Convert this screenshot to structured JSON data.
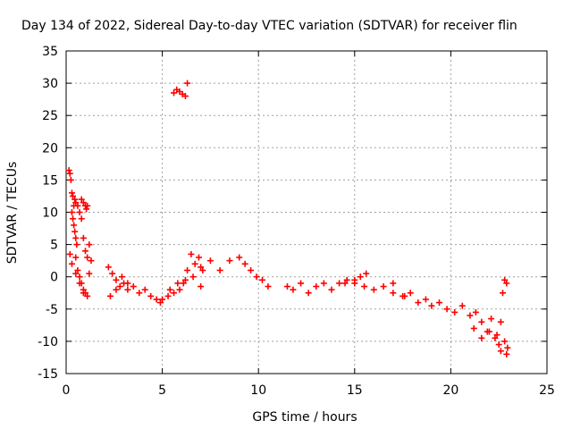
{
  "chart_data": {
    "type": "scatter",
    "title": "Day 134 of 2022, Sidereal Day-to-day VTEC variation (SDTVAR) for receiver flin",
    "xlabel": "GPS time / hours",
    "ylabel": "SDTVAR / TECUs",
    "xlim": [
      0,
      25
    ],
    "ylim": [
      -15,
      35
    ],
    "xticks": [
      0,
      5,
      10,
      15,
      20,
      25
    ],
    "yticks": [
      -15,
      -10,
      -5,
      0,
      5,
      10,
      15,
      20,
      25,
      30,
      35
    ],
    "grid": true,
    "marker": "plus",
    "color": "#ff0000",
    "series": [
      {
        "name": "SDTVAR",
        "x": [
          0.15,
          0.2,
          0.25,
          0.3,
          0.35,
          0.4,
          0.45,
          0.5,
          0.6,
          0.7,
          0.8,
          0.9,
          1.0,
          1.05,
          1.1,
          0.3,
          0.35,
          0.4,
          0.45,
          0.5,
          0.55,
          0.5,
          0.6,
          0.7,
          0.8,
          0.9,
          1.0,
          1.2,
          1.3,
          0.2,
          0.3,
          0.5,
          0.7,
          0.9,
          1.1,
          0.8,
          0.9,
          1.0,
          1.1,
          1.2,
          2.2,
          2.4,
          2.6,
          2.8,
          3.0,
          3.2,
          3.5,
          3.8,
          4.1,
          4.4,
          4.7,
          4.9,
          2.3,
          2.6,
          2.9,
          3.2,
          5.0,
          5.3,
          5.6,
          5.9,
          6.1,
          6.3,
          6.5,
          6.7,
          6.9,
          7.1,
          5.4,
          5.8,
          6.2,
          6.6,
          7.0,
          7.0,
          7.5,
          8.0,
          8.5,
          9.0,
          9.3,
          9.6,
          9.9,
          10.2,
          10.5,
          5.6,
          5.75,
          5.9,
          6.05,
          6.2,
          6.3,
          11.5,
          11.8,
          12.2,
          12.6,
          13.0,
          13.4,
          13.8,
          14.2,
          14.6,
          15.0,
          15.3,
          15.6,
          14.5,
          15.0,
          15.5,
          16.0,
          16.5,
          17.0,
          17.5,
          17.0,
          17.6,
          17.9,
          18.3,
          18.7,
          19.0,
          19.4,
          19.8,
          20.2,
          20.6,
          21.0,
          21.3,
          21.6,
          21.9,
          22.1,
          22.3,
          22.5,
          22.6,
          22.7,
          22.8,
          22.9,
          21.2,
          21.6,
          22.0,
          22.4,
          22.8,
          22.6,
          22.9,
          22.95
        ],
        "y": [
          16.5,
          16.0,
          15.0,
          13.0,
          12.5,
          11.0,
          12.0,
          11.5,
          11.0,
          10.0,
          12.0,
          11.5,
          11.0,
          10.5,
          11.0,
          10.0,
          9.0,
          8.0,
          7.0,
          6.0,
          5.0,
          3.0,
          1.0,
          0.0,
          -1.0,
          -2.0,
          -2.5,
          0.5,
          2.5,
          3.5,
          2.0,
          0.5,
          -1.0,
          -2.5,
          -3.0,
          9.0,
          6.0,
          4.0,
          3.0,
          5.0,
          1.5,
          0.5,
          -0.5,
          -1.5,
          -1.0,
          -2.0,
          -1.5,
          -2.5,
          -2.0,
          -3.0,
          -3.5,
          -4.0,
          -3.0,
          -2.0,
          0.0,
          -1.0,
          -3.5,
          -3.0,
          -2.5,
          -2.0,
          -1.0,
          1.0,
          3.5,
          2.0,
          3.0,
          1.0,
          -2.0,
          -1.0,
          -0.5,
          0.0,
          -1.5,
          1.5,
          2.5,
          1.0,
          2.5,
          3.0,
          2.0,
          1.0,
          0.0,
          -0.5,
          -1.5,
          28.5,
          29.0,
          28.7,
          28.3,
          28.0,
          30.0,
          -1.5,
          -2.0,
          -1.0,
          -2.5,
          -1.5,
          -1.0,
          -2.0,
          -1.0,
          -0.5,
          -1.0,
          0.0,
          0.5,
          -1.0,
          -0.5,
          -1.5,
          -2.0,
          -1.5,
          -2.5,
          -3.0,
          -1.0,
          -3.0,
          -2.5,
          -4.0,
          -3.5,
          -4.5,
          -4.0,
          -5.0,
          -5.5,
          -4.5,
          -6.0,
          -5.5,
          -7.0,
          -8.5,
          -6.5,
          -9.5,
          -10.5,
          -7.0,
          -2.5,
          -0.5,
          -1.0,
          -8.0,
          -9.5,
          -8.5,
          -9.0,
          -10.0,
          -11.5,
          -12.0,
          -11.0
        ]
      }
    ]
  }
}
